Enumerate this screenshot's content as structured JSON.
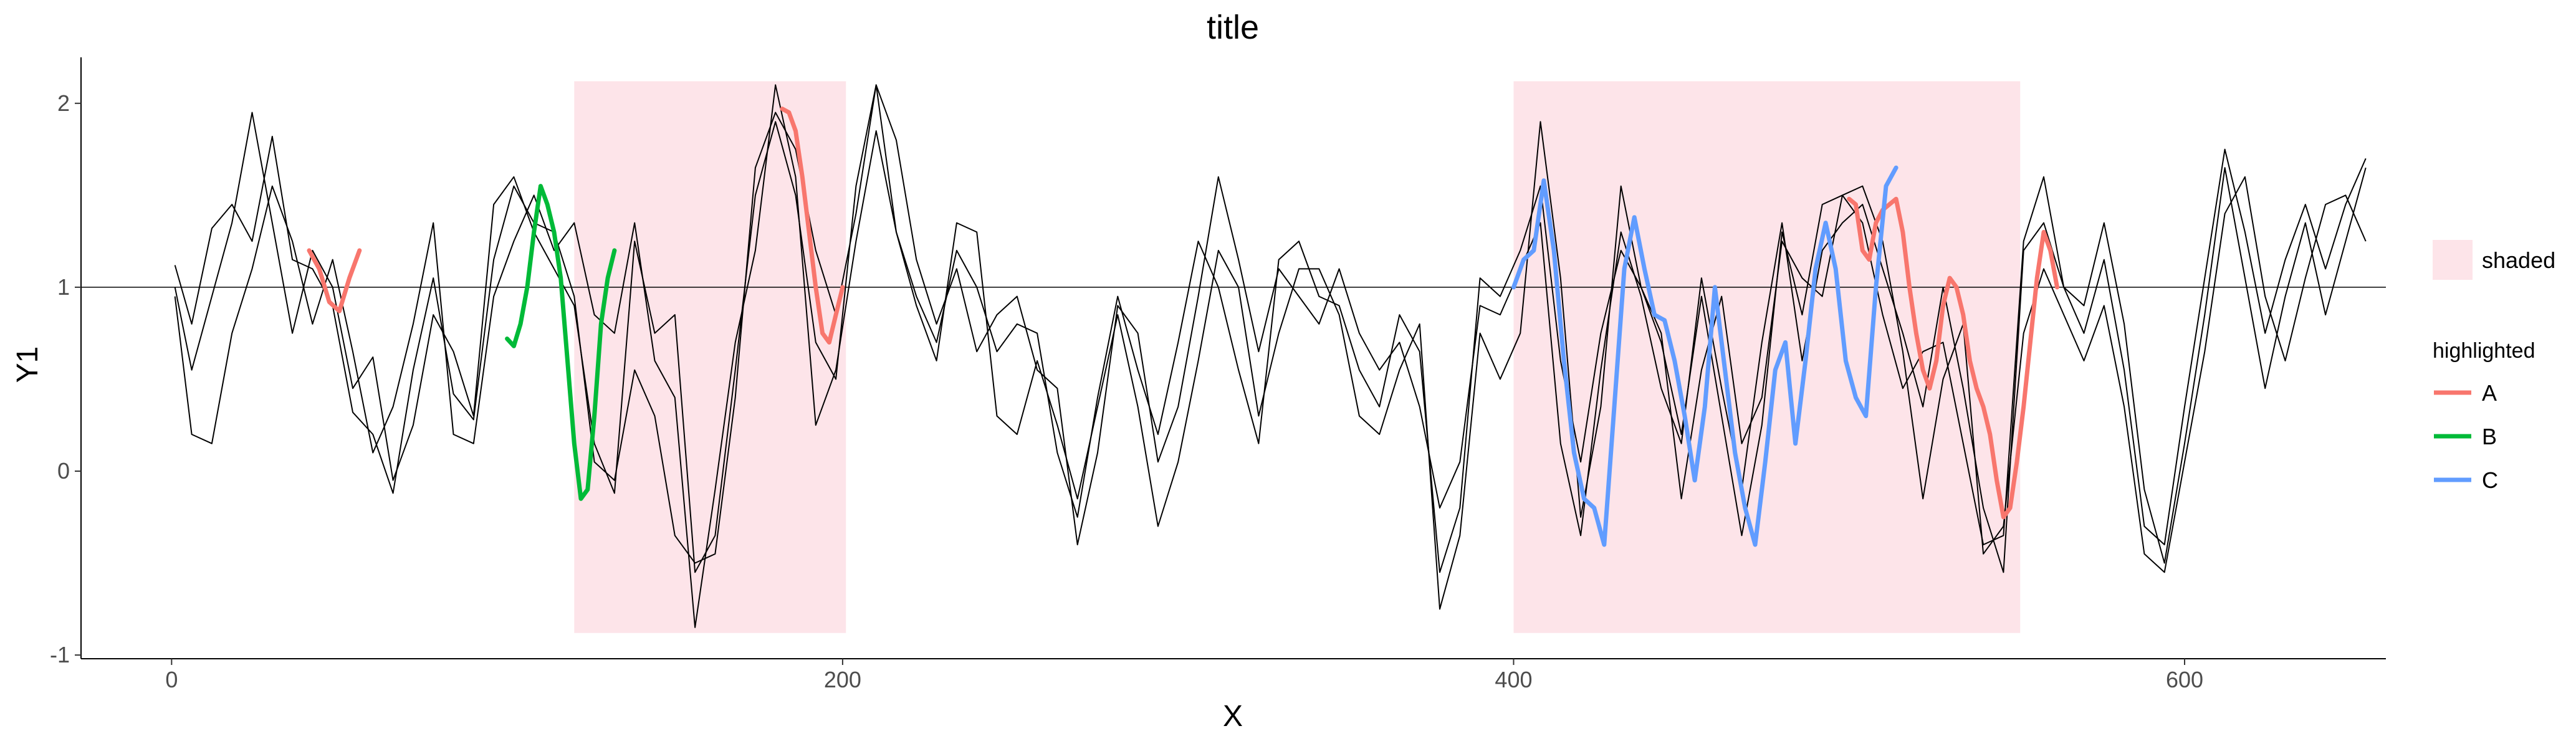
{
  "chart_data": {
    "type": "line",
    "title": "title",
    "xlabel": "X",
    "ylabel": "Y1",
    "xlim": [
      -27,
      660
    ],
    "ylim": [
      -1.02,
      2.25
    ],
    "xticks": [
      0,
      200,
      400,
      600
    ],
    "yticks": [
      -1,
      0,
      1,
      2
    ],
    "hline": 1,
    "grid": false,
    "legend_position": "right",
    "shaded_regions": [
      {
        "x0": 120,
        "x1": 201,
        "y0": -0.88,
        "y1": 2.12
      },
      {
        "x0": 400,
        "x1": 551,
        "y0": -0.88,
        "y1": 2.12
      }
    ],
    "series": [
      {
        "color": "#000000",
        "x": [
          1,
          6,
          12,
          18,
          24,
          30,
          36,
          42,
          48,
          54,
          60,
          66,
          72,
          78,
          84,
          90,
          96,
          102,
          108,
          114,
          120,
          126,
          132,
          138,
          144,
          150,
          156,
          162,
          168,
          174,
          180,
          186,
          192,
          198,
          204,
          210,
          216,
          222,
          228,
          234,
          240,
          246,
          252,
          258,
          264,
          270,
          276,
          282,
          288,
          294,
          300,
          306,
          312,
          318,
          324,
          330,
          336,
          342,
          348,
          354,
          360,
          366,
          372,
          378,
          384,
          390,
          396,
          402,
          408,
          414,
          420,
          426,
          432,
          438,
          444,
          450,
          456,
          462,
          468,
          474,
          480,
          486,
          492,
          498,
          504,
          510,
          516,
          522,
          528,
          534,
          540,
          546,
          552,
          558,
          564,
          570,
          576,
          582,
          588,
          594,
          600,
          606,
          612,
          618,
          624,
          630,
          636,
          642,
          648,
          654
        ],
        "y": [
          1.12,
          0.8,
          1.32,
          1.45,
          1.25,
          1.82,
          1.15,
          1.1,
          0.9,
          0.32,
          0.2,
          -0.12,
          0.55,
          1.05,
          0.42,
          0.28,
          1.15,
          1.55,
          1.35,
          1.3,
          0.95,
          0.05,
          -0.05,
          0.55,
          0.3,
          -0.35,
          -0.5,
          -0.45,
          0.4,
          1.65,
          1.95,
          1.75,
          1.2,
          0.85,
          1.4,
          2.1,
          1.8,
          1.15,
          0.8,
          1.1,
          0.65,
          0.85,
          0.95,
          0.55,
          0.45,
          -0.4,
          0.1,
          0.9,
          0.75,
          0.05,
          0.35,
          0.95,
          1.6,
          1.15,
          0.65,
          1.1,
          0.95,
          0.8,
          1.1,
          0.75,
          0.55,
          0.7,
          0.35,
          -0.2,
          0.05,
          0.9,
          0.85,
          1.1,
          1.35,
          0.15,
          -0.35,
          0.55,
          1.3,
          0.95,
          0.45,
          0.15,
          1.05,
          0.45,
          -0.1,
          0.7,
          1.35,
          0.6,
          1.2,
          1.35,
          1.45,
          1.1,
          0.75,
          0.35,
          1.0,
          0.45,
          -0.2,
          -0.55,
          1.2,
          1.35,
          1.0,
          0.9,
          1.35,
          0.8,
          -0.1,
          -0.5,
          0.15,
          0.85,
          1.65,
          1.05,
          0.45,
          0.95,
          1.35,
          0.85,
          1.25,
          1.65
        ]
      },
      {
        "color": "#000000",
        "x": [
          1,
          6,
          12,
          18,
          24,
          30,
          36,
          42,
          48,
          54,
          60,
          66,
          72,
          78,
          84,
          90,
          96,
          102,
          108,
          114,
          120,
          126,
          132,
          138,
          144,
          150,
          156,
          162,
          168,
          174,
          180,
          186,
          192,
          198,
          204,
          210,
          216,
          222,
          228,
          234,
          240,
          246,
          252,
          258,
          264,
          270,
          276,
          282,
          288,
          294,
          300,
          306,
          312,
          318,
          324,
          330,
          336,
          342,
          348,
          354,
          360,
          366,
          372,
          378,
          384,
          390,
          396,
          402,
          408,
          414,
          420,
          426,
          432,
          438,
          444,
          450,
          456,
          462,
          468,
          474,
          480,
          486,
          492,
          498,
          504,
          510,
          516,
          522,
          528,
          534,
          540,
          546,
          552,
          558,
          564,
          570,
          576,
          582,
          588,
          594,
          600,
          606,
          612,
          618,
          624,
          630,
          636,
          642,
          648,
          654
        ],
        "y": [
          1.0,
          0.55,
          0.95,
          1.35,
          1.95,
          1.35,
          0.75,
          1.2,
          1.0,
          0.45,
          0.62,
          -0.05,
          0.25,
          0.85,
          0.65,
          0.3,
          1.45,
          1.6,
          1.3,
          1.1,
          0.9,
          0.15,
          -0.12,
          1.25,
          0.75,
          0.85,
          -0.55,
          -0.35,
          0.55,
          1.5,
          1.9,
          1.5,
          0.7,
          0.5,
          1.55,
          2.1,
          1.3,
          0.95,
          0.7,
          1.2,
          1.0,
          0.65,
          0.8,
          0.75,
          0.1,
          -0.25,
          0.4,
          0.95,
          0.55,
          0.2,
          0.7,
          1.25,
          1.0,
          0.55,
          0.15,
          1.15,
          1.25,
          0.95,
          0.9,
          0.55,
          0.35,
          0.85,
          0.65,
          -0.55,
          -0.2,
          1.05,
          0.95,
          1.2,
          1.55,
          0.6,
          0.05,
          0.75,
          1.2,
          1.0,
          0.7,
          0.2,
          0.95,
          0.3,
          -0.35,
          0.25,
          1.3,
          0.85,
          1.45,
          1.5,
          1.35,
          0.85,
          0.45,
          0.65,
          0.7,
          0.15,
          -0.4,
          -0.35,
          1.25,
          1.6,
          1.0,
          0.75,
          1.15,
          0.55,
          -0.3,
          -0.4,
          0.35,
          1.05,
          1.75,
          1.3,
          0.75,
          1.15,
          1.45,
          1.1,
          1.45,
          1.7
        ]
      },
      {
        "color": "#000000",
        "x": [
          1,
          6,
          12,
          18,
          24,
          30,
          36,
          42,
          48,
          54,
          60,
          66,
          72,
          78,
          84,
          90,
          96,
          102,
          108,
          114,
          120,
          126,
          132,
          138,
          144,
          150,
          156,
          162,
          168,
          174,
          180,
          186,
          192,
          198,
          204,
          210,
          216,
          222,
          228,
          234,
          240,
          246,
          252,
          258,
          264,
          270,
          276,
          282,
          288,
          294,
          300,
          306,
          312,
          318,
          324,
          330,
          336,
          342,
          348,
          354,
          360,
          366,
          372,
          378,
          384,
          390,
          396,
          402,
          408,
          414,
          420,
          426,
          432,
          438,
          444,
          450,
          456,
          462,
          468,
          474,
          480,
          486,
          492,
          498,
          504,
          510,
          516,
          522,
          528,
          534,
          540,
          546,
          552,
          558,
          564,
          570,
          576,
          582,
          588,
          594,
          600,
          606,
          612,
          618,
          624,
          630,
          636,
          642,
          648,
          654
        ],
        "y": [
          0.95,
          0.2,
          0.15,
          0.75,
          1.1,
          1.55,
          1.25,
          0.8,
          1.15,
          0.65,
          0.1,
          0.35,
          0.8,
          1.35,
          0.2,
          0.15,
          0.95,
          1.25,
          1.5,
          1.2,
          1.35,
          0.85,
          0.75,
          1.35,
          0.6,
          0.4,
          -0.85,
          -0.1,
          0.7,
          1.2,
          2.1,
          1.6,
          0.25,
          0.55,
          1.25,
          1.85,
          1.3,
          0.9,
          0.6,
          1.35,
          1.3,
          0.3,
          0.2,
          0.6,
          0.25,
          -0.15,
          0.35,
          0.85,
          0.35,
          -0.3,
          0.05,
          0.6,
          1.2,
          1.0,
          0.3,
          0.75,
          1.1,
          1.1,
          0.85,
          0.3,
          0.2,
          0.55,
          0.8,
          -0.75,
          -0.35,
          0.75,
          0.5,
          0.75,
          1.9,
          1.05,
          -0.25,
          0.35,
          1.55,
          1.0,
          0.75,
          -0.15,
          0.55,
          0.95,
          0.15,
          0.4,
          1.25,
          1.05,
          0.95,
          1.5,
          1.55,
          1.25,
          0.65,
          -0.15,
          0.5,
          0.8,
          -0.45,
          -0.3,
          0.75,
          1.1,
          0.85,
          0.6,
          0.9,
          0.35,
          -0.45,
          -0.55,
          0.05,
          0.65,
          1.4,
          1.6,
          0.95,
          0.6,
          1.05,
          1.45,
          1.5,
          1.25
        ]
      }
    ],
    "highlighted": [
      {
        "name": "A",
        "color": "#F8766D",
        "segments": [
          {
            "x": [
              41,
              44,
              47,
              50,
              53,
              56
            ],
            "y": [
              1.2,
              1.1,
              0.92,
              0.87,
              1.05,
              1.2
            ]
          },
          {
            "x": [
              182,
              184,
              186,
              188,
              190,
              192,
              194,
              196,
              198,
              200
            ],
            "y": [
              1.97,
              1.95,
              1.85,
              1.6,
              1.3,
              1.0,
              0.75,
              0.7,
              0.85,
              1.0
            ]
          },
          {
            "x": [
              500,
              502,
              504,
              506,
              508,
              510,
              512,
              514,
              516,
              518,
              520,
              522,
              524,
              526,
              528,
              530,
              532,
              534,
              536,
              538,
              540,
              542,
              544,
              546,
              548,
              550,
              552,
              554,
              556,
              558,
              560,
              562
            ],
            "y": [
              1.48,
              1.45,
              1.2,
              1.15,
              1.35,
              1.42,
              1.45,
              1.48,
              1.3,
              1.0,
              0.75,
              0.55,
              0.45,
              0.6,
              0.9,
              1.05,
              1.0,
              0.85,
              0.6,
              0.45,
              0.35,
              0.2,
              -0.05,
              -0.25,
              -0.2,
              0.05,
              0.35,
              0.7,
              1.05,
              1.3,
              1.2,
              1.0
            ]
          }
        ]
      },
      {
        "name": "B",
        "color": "#00BA38",
        "segments": [
          {
            "x": [
              100,
              102,
              104,
              106,
              108,
              110,
              112,
              114,
              116,
              118,
              120,
              122,
              124,
              126,
              128,
              130,
              132
            ],
            "y": [
              0.72,
              0.68,
              0.8,
              1.0,
              1.3,
              1.55,
              1.45,
              1.3,
              1.05,
              0.6,
              0.15,
              -0.15,
              -0.1,
              0.3,
              0.8,
              1.05,
              1.2
            ]
          }
        ]
      },
      {
        "name": "C",
        "color": "#619CFF",
        "segments": [
          {
            "x": [
              400,
              403,
              406,
              409,
              412,
              415,
              418,
              421,
              424,
              427,
              430,
              433,
              436,
              439,
              442,
              445,
              448,
              451,
              454,
              457,
              460,
              463,
              466,
              469,
              472,
              475,
              478,
              481,
              484,
              487,
              490,
              493,
              496,
              499,
              502,
              505,
              508,
              511,
              514
            ],
            "y": [
              1.0,
              1.15,
              1.2,
              1.58,
              1.2,
              0.6,
              0.1,
              -0.15,
              -0.2,
              -0.4,
              0.35,
              1.1,
              1.38,
              1.1,
              0.85,
              0.82,
              0.6,
              0.3,
              -0.05,
              0.35,
              1.0,
              0.55,
              0.1,
              -0.2,
              -0.4,
              0.05,
              0.55,
              0.7,
              0.15,
              0.6,
              1.1,
              1.35,
              1.1,
              0.6,
              0.4,
              0.3,
              1.0,
              1.55,
              1.65
            ]
          }
        ]
      }
    ],
    "legend": {
      "shaded_label": "shaded",
      "shaded_color": "#FDE4E9",
      "highlighted_title": "highlighted",
      "entries": [
        "A",
        "B",
        "C"
      ]
    }
  }
}
